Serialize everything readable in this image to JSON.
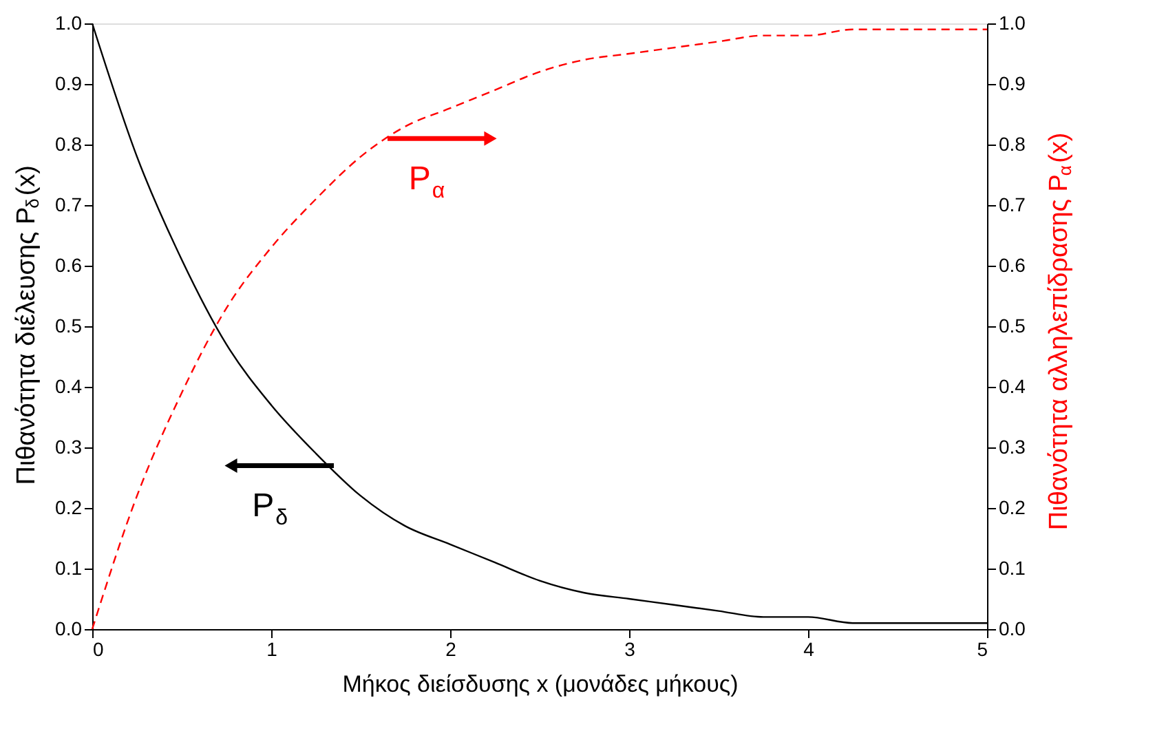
{
  "chart_data": {
    "type": "line",
    "xlabel": "Μήκος διείσδυσης x (μονάδες μήκους)",
    "ylabel": "Πιθανότητα διέλευσης P$_{δ}$(x)",
    "y2label": "Πιθανότητα αλληλεπίδρασης P$_{α}$(x)",
    "x": [
      0,
      0.25,
      0.5,
      0.75,
      1,
      1.25,
      1.5,
      1.75,
      2,
      2.25,
      2.5,
      2.75,
      3,
      3.25,
      3.5,
      3.75,
      4,
      4.25,
      4.5,
      4.75,
      5
    ],
    "series": [
      {
        "color": "#000000",
        "line_style": "solid",
        "values": [
          1.0,
          0.78,
          0.61,
          0.47,
          0.37,
          0.29,
          0.22,
          0.17,
          0.14,
          0.11,
          0.08,
          0.06,
          0.05,
          0.04,
          0.03,
          0.02,
          0.02,
          0.01,
          0.01,
          0.01,
          0.01
        ]
      },
      {
        "color": "#ff0000",
        "line_style": "dashed",
        "axis": "y2",
        "values": [
          0.0,
          0.22,
          0.39,
          0.53,
          0.63,
          0.71,
          0.78,
          0.83,
          0.86,
          0.89,
          0.92,
          0.94,
          0.95,
          0.96,
          0.97,
          0.98,
          0.98,
          0.99,
          0.99,
          0.99,
          0.99
        ]
      }
    ],
    "annotations": [
      {
        "text": "P$_{δ}$",
        "x": 1.35,
        "y": 0.27
      },
      {
        "text": "P$_{α}$",
        "x": 1.65,
        "y": 0.81
      }
    ],
    "xlim": [
      0,
      5
    ],
    "xticks": [
      0,
      1,
      2,
      3,
      4,
      5
    ],
    "ylim": [
      0,
      1
    ],
    "yticks": [
      {
        "value": 0,
        "label": "0.0"
      },
      {
        "value": 0.1,
        "label": "0.1"
      },
      {
        "value": 0.2,
        "label": "0.2"
      },
      {
        "value": 0.3,
        "label": "0.3"
      },
      {
        "value": 0.4,
        "label": "0.4"
      },
      {
        "value": 0.5,
        "label": "0.5"
      },
      {
        "value": 0.6,
        "label": "0.6"
      },
      {
        "value": 0.7,
        "label": "0.7"
      },
      {
        "value": 0.8,
        "label": "0.8"
      },
      {
        "value": 0.9,
        "label": "0.9"
      },
      {
        "value": 1,
        "label": "1.0"
      }
    ],
    "y2lim": [
      0,
      1
    ],
    "y2ticks": [
      {
        "value": 0,
        "label": "0.0"
      },
      {
        "value": 0.1,
        "label": "0.1"
      },
      {
        "value": 0.2,
        "label": "0.2"
      },
      {
        "value": 0.3,
        "label": "0.3"
      },
      {
        "value": 0.4,
        "label": "0.4"
      },
      {
        "value": 0.5,
        "label": "0.5"
      },
      {
        "value": 0.6,
        "label": "0.6"
      },
      {
        "value": 0.7,
        "label": "0.7"
      },
      {
        "value": 0.8,
        "label": "0.8"
      },
      {
        "value": 0.9,
        "label": "0.9"
      },
      {
        "value": 1,
        "label": "1.0"
      }
    ],
    "grid": false
  }
}
